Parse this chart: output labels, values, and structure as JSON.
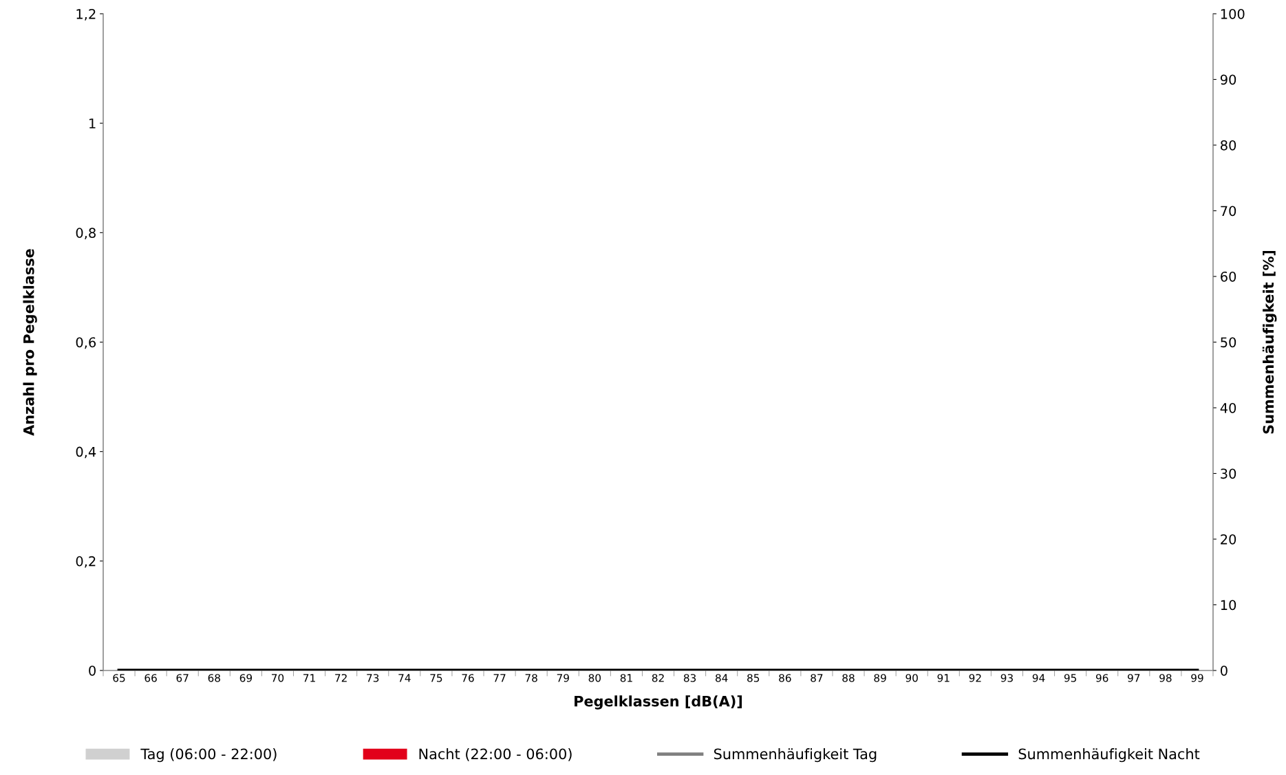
{
  "chart_data": {
    "type": "bar",
    "xlabel": "Pegelklassen [dB(A)]",
    "ylabel": "Anzahl pro Pegelklasse",
    "y2label": "Summenhäufigkeit [%]",
    "categories": [
      "65",
      "66",
      "67",
      "68",
      "69",
      "70",
      "71",
      "72",
      "73",
      "74",
      "75",
      "76",
      "77",
      "78",
      "79",
      "80",
      "81",
      "82",
      "83",
      "84",
      "85",
      "86",
      "87",
      "88",
      "89",
      "90",
      "91",
      "92",
      "93",
      "94",
      "95",
      "96",
      "97",
      "98",
      "99"
    ],
    "series": [
      {
        "name": "Tag (06:00 - 22:00)",
        "color": "#d0d0d0",
        "values": [
          0,
          0,
          0,
          0,
          0,
          0,
          0,
          0,
          0,
          0,
          0,
          0,
          0,
          0,
          0,
          0,
          0,
          0,
          0,
          0,
          0,
          0,
          0,
          0,
          0,
          0,
          0,
          0,
          0,
          0,
          0,
          0,
          0,
          0,
          0
        ]
      },
      {
        "name": "Nacht (22:00 - 06:00)",
        "color": "#e2001a",
        "values": [
          0,
          0,
          0,
          0,
          0,
          0,
          0,
          0,
          0,
          0,
          0,
          0,
          0,
          0,
          0,
          0,
          0,
          0,
          0,
          0,
          0,
          0,
          0,
          0,
          0,
          0,
          0,
          0,
          0,
          0,
          0,
          0,
          0,
          0,
          0
        ]
      },
      {
        "name": "Summenhäufigkeit Tag",
        "type": "line",
        "axis": "y2",
        "color": "#808080",
        "values": [
          null,
          null,
          null,
          null,
          null,
          null,
          null,
          null,
          null,
          null,
          null,
          null,
          null,
          null,
          null,
          null,
          null,
          null,
          null,
          null,
          null,
          null,
          null,
          null,
          null,
          null,
          null,
          null,
          null,
          null,
          null,
          null,
          null,
          null,
          null
        ]
      },
      {
        "name": "Summenhäufigkeit Nacht",
        "type": "line",
        "axis": "y2",
        "color": "#000000",
        "values": [
          0,
          0,
          0,
          0,
          0,
          0,
          0,
          0,
          0,
          0,
          0,
          0,
          0,
          0,
          0,
          0,
          0,
          0,
          0,
          0,
          0,
          0,
          0,
          0,
          0,
          0,
          0,
          0,
          0,
          0,
          0,
          0,
          0,
          0,
          0
        ]
      }
    ],
    "ylim": [
      0,
      1.2
    ],
    "yticks": [
      0,
      {
        "value": 0.2,
        "label": "0,2"
      },
      {
        "value": 0.4,
        "label": "0,4"
      },
      {
        "value": 0.6,
        "label": "0,6"
      },
      {
        "value": 0.8,
        "label": "0,8"
      },
      1,
      {
        "value": 1.2,
        "label": "1,2"
      }
    ],
    "y2lim": [
      0,
      100
    ],
    "y2ticks": [
      0,
      10,
      20,
      30,
      40,
      50,
      60,
      70,
      80,
      90,
      100
    ],
    "grid": false,
    "legend": "bottom",
    "marker": "none",
    "line_style": "solid"
  }
}
